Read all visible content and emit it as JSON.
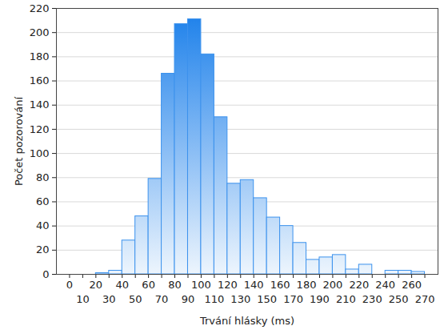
{
  "chart_data": {
    "type": "histogram",
    "xlabel": "Trvání hlásky (ms)",
    "ylabel": "Počet pozorování",
    "bins": [
      0,
      10,
      20,
      30,
      40,
      50,
      60,
      70,
      80,
      90,
      100,
      110,
      120,
      130,
      140,
      150,
      160,
      170,
      180,
      190,
      200,
      210,
      220,
      230,
      240,
      250,
      260,
      270
    ],
    "values": [
      0,
      0,
      1,
      3,
      28,
      48,
      79,
      166,
      207,
      211,
      182,
      130,
      75,
      78,
      63,
      47,
      40,
      26,
      12,
      14,
      16,
      4,
      8,
      0,
      3,
      3,
      2
    ],
    "color": "#1a7fea",
    "xlim": [
      -10,
      280
    ],
    "xticks": [
      0,
      10,
      20,
      30,
      40,
      50,
      60,
      70,
      80,
      90,
      100,
      110,
      120,
      130,
      140,
      150,
      160,
      170,
      180,
      190,
      200,
      210,
      220,
      230,
      240,
      250,
      260,
      270
    ],
    "ylim": [
      0,
      220
    ],
    "yticks": [
      0,
      20,
      40,
      60,
      80,
      100,
      120,
      140,
      160,
      180,
      200,
      220
    ],
    "grid": true
  }
}
